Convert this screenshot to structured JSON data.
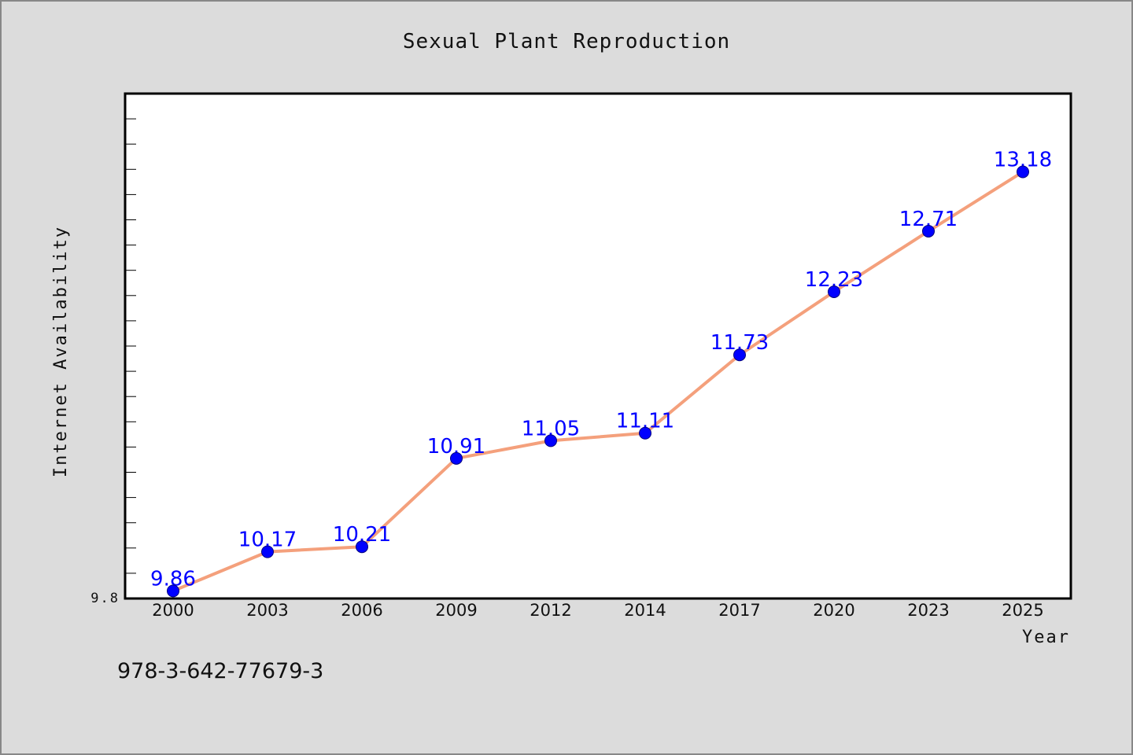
{
  "chart_data": {
    "type": "line",
    "title": "Sexual Plant Reproduction",
    "xlabel": "Year",
    "ylabel": "Internet Availability",
    "categories": [
      "2000",
      "2003",
      "2006",
      "2009",
      "2012",
      "2014",
      "2017",
      "2020",
      "2023",
      "2025"
    ],
    "series": [
      {
        "values": [
          9.86,
          10.17,
          10.21,
          10.91,
          11.05,
          11.11,
          11.73,
          12.23,
          12.71,
          13.18
        ],
        "labels": [
          "9.86",
          "10.17",
          "10.21",
          "10.91",
          "11.05",
          "11.11",
          "11.73",
          "12.23",
          "12.71",
          "13.18"
        ],
        "line_color": "#f4a07c",
        "marker_color": "#0000ff"
      }
    ],
    "ylim": [
      9.8,
      13.8
    ],
    "yticks": [
      "9.8"
    ],
    "grid": false,
    "legend": "none"
  },
  "footer_text": "978-3-642-77679-3",
  "colors": {
    "background": "#dcdcdc",
    "plot_background": "#ffffff",
    "line": "#f4a07c",
    "marker": "#0000ff",
    "data_label": "#0000ff"
  }
}
